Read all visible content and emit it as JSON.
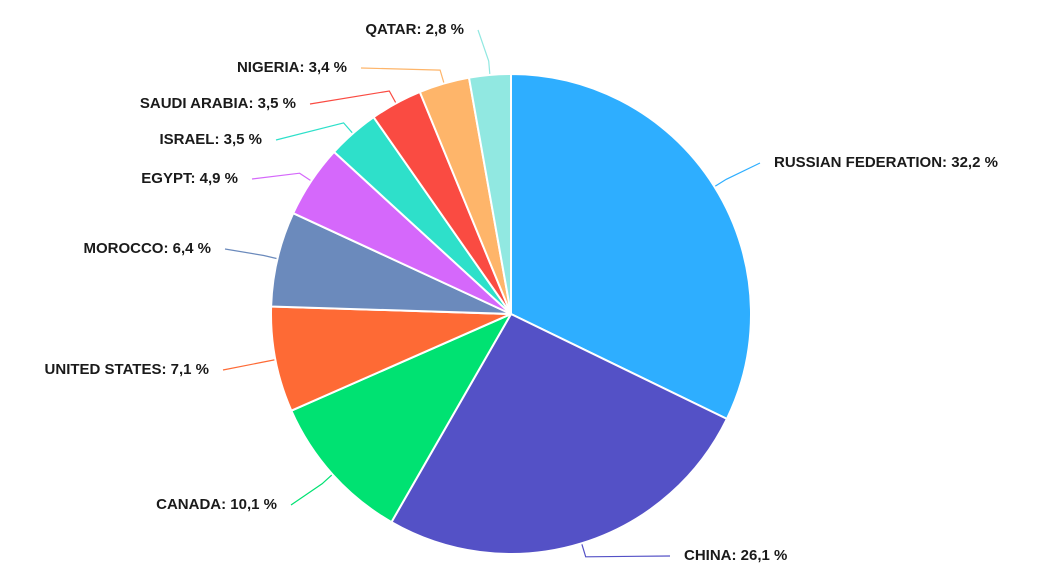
{
  "chart_data": {
    "type": "pie",
    "categories": [
      "RUSSIAN FEDERATION",
      "CHINA",
      "CANADA",
      "UNITED STATES",
      "MOROCCO",
      "EGYPT",
      "ISRAEL",
      "SAUDI ARABIA",
      "NIGERIA",
      "QATAR"
    ],
    "values": [
      32.2,
      26.1,
      10.1,
      7.1,
      6.4,
      4.9,
      3.5,
      3.5,
      3.4,
      2.8
    ],
    "labels": [
      "RUSSIAN FEDERATION: 32,2 %",
      "CHINA: 26,1 %",
      "CANADA: 10,1 %",
      "UNITED STATES: 7,1 %",
      "MOROCCO: 6,4 %",
      "EGYPT: 4,9 %",
      "ISRAEL: 3,5 %",
      "SAUDI ARABIA: 3,5 %",
      "NIGERIA: 3,4 %",
      "QATAR: 2,8 %"
    ],
    "colors": [
      "#2eaeff",
      "#5451c6",
      "#00e272",
      "#fe6a35",
      "#6b8abc",
      "#d568fb",
      "#2ee0ca",
      "#fa4b42",
      "#feb56a",
      "#91e8e1"
    ],
    "unit": "%",
    "legend": "none",
    "direction": "clockwise-from-top"
  }
}
